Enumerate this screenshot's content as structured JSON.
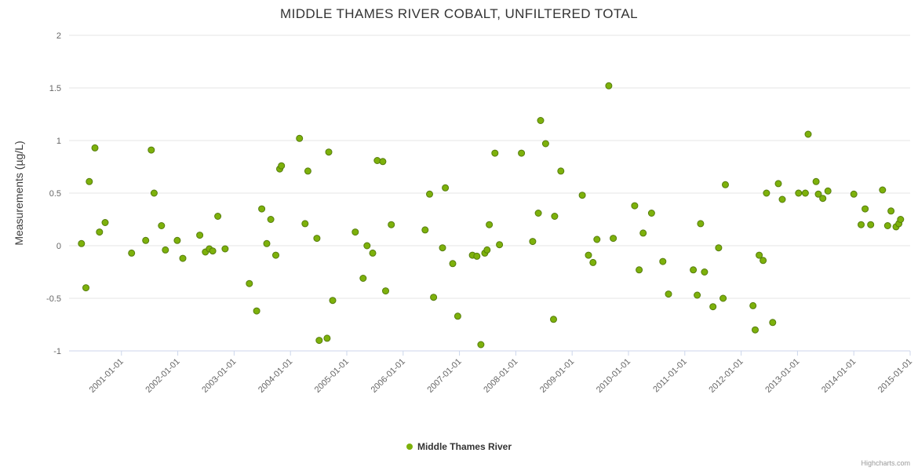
{
  "chart": {
    "title": "MIDDLE THAMES RIVER COBALT, UNFILTERED TOTAL",
    "credits": "Highcharts.com"
  },
  "legend": {
    "items": [
      {
        "label": "Middle Thames River",
        "color": "#7db10b"
      }
    ]
  },
  "chart_data": {
    "type": "scatter",
    "title": "MIDDLE THAMES RIVER COBALT, UNFILTERED TOTAL",
    "xlabel": "",
    "ylabel": "Measurements (µg/L)",
    "legend_position": "bottom-center",
    "grid": "horizontal",
    "marker_color": "#7db10b",
    "marker_stroke": "#567d0e",
    "grid_color": "#e6e6e6",
    "axis_line_color": "#ccd6eb",
    "tick_label_color": "#666666",
    "y_ticks": [
      -1,
      -0.5,
      0,
      0.5,
      1,
      1.5,
      2
    ],
    "ylim": [
      -1,
      2
    ],
    "x_tick_labels": [
      "2001-01-01",
      "2002-01-01",
      "2003-01-01",
      "2004-01-01",
      "2005-01-01",
      "2006-01-01",
      "2007-01-01",
      "2008-01-01",
      "2009-01-01",
      "2010-01-01",
      "2011-01-01",
      "2012-01-01",
      "2013-01-01",
      "2014-01-01",
      "2015-01-01"
    ],
    "x_tick_years": [
      2001,
      2002,
      2003,
      2004,
      2005,
      2006,
      2007,
      2008,
      2009,
      2010,
      2011,
      2012,
      2013,
      2014,
      2015
    ],
    "xlim_decimal_years": [
      2000.07,
      2015.0
    ],
    "series": [
      {
        "name": "Middle Thames River",
        "points": [
          [
            2000.29,
            0.02
          ],
          [
            2000.37,
            -0.4
          ],
          [
            2000.43,
            0.61
          ],
          [
            2000.53,
            0.93
          ],
          [
            2000.61,
            0.13
          ],
          [
            2000.71,
            0.22
          ],
          [
            2001.18,
            -0.07
          ],
          [
            2001.43,
            0.05
          ],
          [
            2001.53,
            0.91
          ],
          [
            2001.58,
            0.5
          ],
          [
            2001.71,
            0.19
          ],
          [
            2001.78,
            -0.04
          ],
          [
            2001.99,
            0.05
          ],
          [
            2002.09,
            -0.12
          ],
          [
            2002.39,
            0.1
          ],
          [
            2002.49,
            -0.06
          ],
          [
            2002.56,
            -0.03
          ],
          [
            2002.62,
            -0.05
          ],
          [
            2002.71,
            0.28
          ],
          [
            2002.84,
            -0.03
          ],
          [
            2003.27,
            -0.36
          ],
          [
            2003.4,
            -0.62
          ],
          [
            2003.49,
            0.35
          ],
          [
            2003.58,
            0.02
          ],
          [
            2003.65,
            0.25
          ],
          [
            2003.74,
            -0.09
          ],
          [
            2003.81,
            0.73
          ],
          [
            2003.84,
            0.76
          ],
          [
            2004.16,
            1.02
          ],
          [
            2004.26,
            0.21
          ],
          [
            2004.31,
            0.71
          ],
          [
            2004.47,
            0.07
          ],
          [
            2004.51,
            -0.9
          ],
          [
            2004.65,
            -0.88
          ],
          [
            2004.68,
            0.89
          ],
          [
            2004.75,
            -0.52
          ],
          [
            2005.15,
            0.13
          ],
          [
            2005.29,
            -0.31
          ],
          [
            2005.36,
            0.0
          ],
          [
            2005.46,
            -0.07
          ],
          [
            2005.54,
            0.81
          ],
          [
            2005.64,
            0.8
          ],
          [
            2005.69,
            -0.43
          ],
          [
            2005.79,
            0.2
          ],
          [
            2006.39,
            0.15
          ],
          [
            2006.47,
            0.49
          ],
          [
            2006.54,
            -0.49
          ],
          [
            2006.7,
            -0.02
          ],
          [
            2006.75,
            0.55
          ],
          [
            2006.88,
            -0.17
          ],
          [
            2006.97,
            -0.67
          ],
          [
            2007.23,
            -0.09
          ],
          [
            2007.31,
            -0.1
          ],
          [
            2007.38,
            -0.94
          ],
          [
            2007.45,
            -0.07
          ],
          [
            2007.49,
            -0.04
          ],
          [
            2007.53,
            0.2
          ],
          [
            2007.63,
            0.88
          ],
          [
            2007.71,
            0.01
          ],
          [
            2008.1,
            0.88
          ],
          [
            2008.3,
            0.04
          ],
          [
            2008.4,
            0.31
          ],
          [
            2008.44,
            1.19
          ],
          [
            2008.53,
            0.97
          ],
          [
            2008.67,
            -0.7
          ],
          [
            2008.69,
            0.28
          ],
          [
            2008.8,
            0.71
          ],
          [
            2009.18,
            0.48
          ],
          [
            2009.29,
            -0.09
          ],
          [
            2009.37,
            -0.16
          ],
          [
            2009.44,
            0.06
          ],
          [
            2009.65,
            1.52
          ],
          [
            2009.73,
            0.07
          ],
          [
            2010.11,
            0.38
          ],
          [
            2010.19,
            -0.23
          ],
          [
            2010.26,
            0.12
          ],
          [
            2010.41,
            0.31
          ],
          [
            2010.61,
            -0.15
          ],
          [
            2010.71,
            -0.46
          ],
          [
            2011.15,
            -0.23
          ],
          [
            2011.22,
            -0.47
          ],
          [
            2011.28,
            0.21
          ],
          [
            2011.35,
            -0.25
          ],
          [
            2011.5,
            -0.58
          ],
          [
            2011.6,
            -0.02
          ],
          [
            2011.68,
            -0.5
          ],
          [
            2011.72,
            0.58
          ],
          [
            2012.21,
            -0.57
          ],
          [
            2012.25,
            -0.8
          ],
          [
            2012.32,
            -0.09
          ],
          [
            2012.39,
            -0.14
          ],
          [
            2012.45,
            0.5
          ],
          [
            2012.56,
            -0.73
          ],
          [
            2012.66,
            0.59
          ],
          [
            2012.73,
            0.44
          ],
          [
            2013.02,
            0.5
          ],
          [
            2013.14,
            0.5
          ],
          [
            2013.19,
            1.06
          ],
          [
            2013.33,
            0.61
          ],
          [
            2013.37,
            0.49
          ],
          [
            2013.45,
            0.45
          ],
          [
            2013.54,
            0.52
          ],
          [
            2014.0,
            0.49
          ],
          [
            2014.13,
            0.2
          ],
          [
            2014.2,
            0.35
          ],
          [
            2014.3,
            0.2
          ],
          [
            2014.51,
            0.53
          ],
          [
            2014.6,
            0.19
          ],
          [
            2014.66,
            0.33
          ],
          [
            2014.75,
            0.18
          ],
          [
            2014.8,
            0.21
          ],
          [
            2014.83,
            0.25
          ]
        ]
      }
    ]
  }
}
